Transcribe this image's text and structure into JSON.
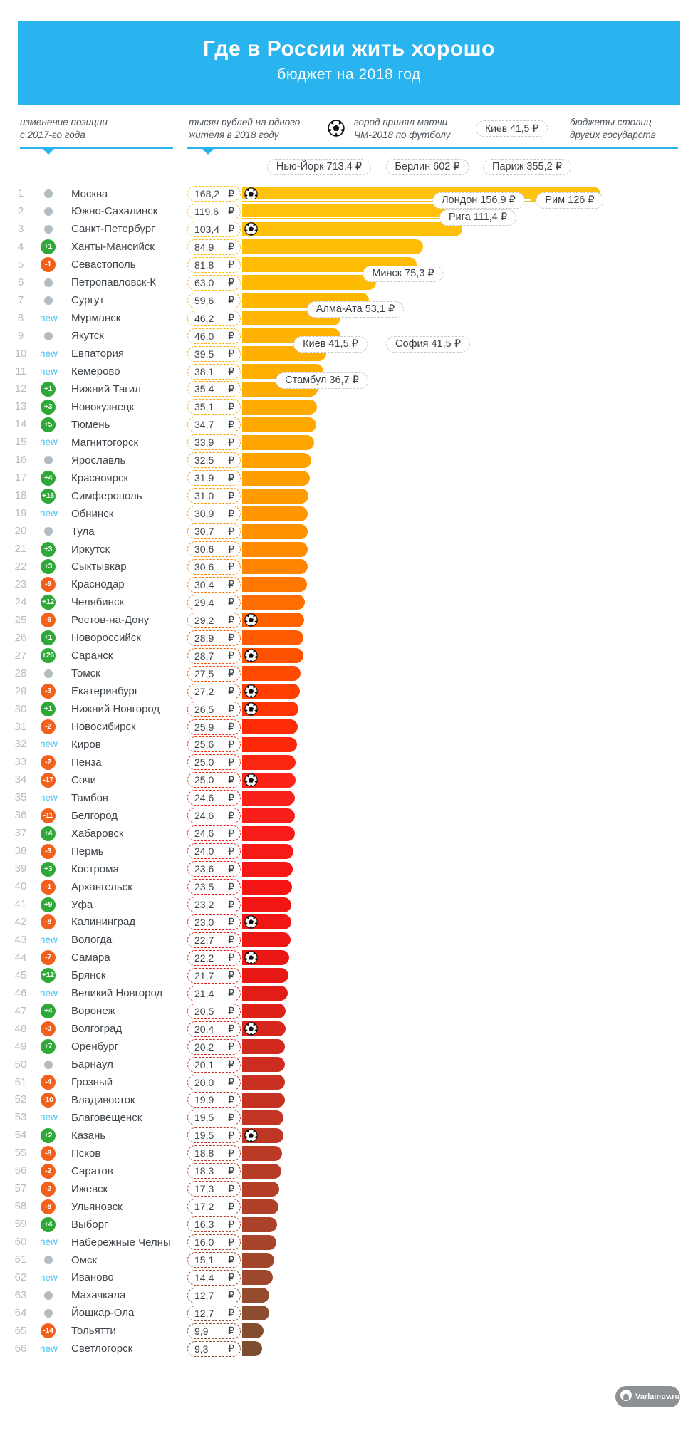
{
  "header": {
    "title": "Где в России жить хорошо",
    "subtitle": "бюджет на 2018 год"
  },
  "legend": {
    "position_change_line1": "изменение позиции",
    "position_change_line2": "с 2017-го года",
    "per_capita_line1": "тысяч рублей на одного",
    "per_capita_line2": "жителя в 2018 году",
    "world_cup_line1": "город принял матчи",
    "world_cup_line2": "ЧМ-2018 по футболу",
    "foreign_line1": "бюджеты столиц",
    "foreign_line2": "других государств",
    "sample_pill": "Киев 41,5 ₽"
  },
  "currency": "₽",
  "colors": {
    "header_blue": "#29B3EF",
    "new_blue": "#45C1F0",
    "up_green": "#2EA836",
    "down_orange": "#F2601C",
    "neutral_gray": "#B2BCC1"
  },
  "footer": {
    "logo_text": "Varlamov.ru"
  },
  "chart_data": {
    "type": "bar",
    "title": "Где в России жить хорошо",
    "subtitle": "бюджет на 2018 год",
    "ylabel": "тысяч рублей на одного жителя в 2018 году",
    "xlim": [
      0,
      168.2
    ],
    "rows": [
      {
        "rank": 1,
        "change": "none",
        "city": "Москва",
        "value": 168.2,
        "value_text": "168,2",
        "world_cup": true
      },
      {
        "rank": 2,
        "change": "none",
        "city": "Южно-Сахалинск",
        "value": 119.6,
        "value_text": "119,6",
        "world_cup": false
      },
      {
        "rank": 3,
        "change": "none",
        "city": "Санкт-Петербург",
        "value": 103.4,
        "value_text": "103,4",
        "world_cup": true
      },
      {
        "rank": 4,
        "change": "+1",
        "city": "Ханты-Мансийск",
        "value": 84.9,
        "value_text": "84,9",
        "world_cup": false
      },
      {
        "rank": 5,
        "change": "-1",
        "city": "Севастополь",
        "value": 81.8,
        "value_text": "81,8",
        "world_cup": false
      },
      {
        "rank": 6,
        "change": "none",
        "city": "Петропавловск-К",
        "value": 63.0,
        "value_text": "63,0",
        "world_cup": false
      },
      {
        "rank": 7,
        "change": "none",
        "city": "Сургут",
        "value": 59.6,
        "value_text": "59,6",
        "world_cup": false
      },
      {
        "rank": 8,
        "change": "new",
        "city": "Мурманск",
        "value": 46.2,
        "value_text": "46,2",
        "world_cup": false
      },
      {
        "rank": 9,
        "change": "none",
        "city": "Якутск",
        "value": 46.0,
        "value_text": "46,0",
        "world_cup": false
      },
      {
        "rank": 10,
        "change": "new",
        "city": "Евпатория",
        "value": 39.5,
        "value_text": "39,5",
        "world_cup": false
      },
      {
        "rank": 11,
        "change": "new",
        "city": "Кемерово",
        "value": 38.1,
        "value_text": "38,1",
        "world_cup": false
      },
      {
        "rank": 12,
        "change": "+1",
        "city": "Нижний Тагил",
        "value": 35.4,
        "value_text": "35,4",
        "world_cup": false
      },
      {
        "rank": 13,
        "change": "+3",
        "city": "Новокузнецк",
        "value": 35.1,
        "value_text": "35,1",
        "world_cup": false
      },
      {
        "rank": 14,
        "change": "+5",
        "city": "Тюмень",
        "value": 34.7,
        "value_text": "34,7",
        "world_cup": false
      },
      {
        "rank": 15,
        "change": "new",
        "city": "Магнитогорск",
        "value": 33.9,
        "value_text": "33,9",
        "world_cup": false
      },
      {
        "rank": 16,
        "change": "none",
        "city": "Ярославль",
        "value": 32.5,
        "value_text": "32,5",
        "world_cup": false
      },
      {
        "rank": 17,
        "change": "+4",
        "city": "Красноярск",
        "value": 31.9,
        "value_text": "31,9",
        "world_cup": false
      },
      {
        "rank": 18,
        "change": "+16",
        "city": "Симферополь",
        "value": 31.0,
        "value_text": "31,0",
        "world_cup": false
      },
      {
        "rank": 19,
        "change": "new",
        "city": "Обнинск",
        "value": 30.9,
        "value_text": "30,9",
        "world_cup": false
      },
      {
        "rank": 20,
        "change": "none",
        "city": "Тула",
        "value": 30.7,
        "value_text": "30,7",
        "world_cup": false
      },
      {
        "rank": 21,
        "change": "+3",
        "city": "Иркутск",
        "value": 30.6,
        "value_text": "30,6",
        "world_cup": false
      },
      {
        "rank": 22,
        "change": "+3",
        "city": "Сыктывкар",
        "value": 30.6,
        "value_text": "30,6",
        "world_cup": false
      },
      {
        "rank": 23,
        "change": "-9",
        "city": "Краснодар",
        "value": 30.4,
        "value_text": "30,4",
        "world_cup": false
      },
      {
        "rank": 24,
        "change": "+12",
        "city": "Челябинск",
        "value": 29.4,
        "value_text": "29,4",
        "world_cup": false
      },
      {
        "rank": 25,
        "change": "-6",
        "city": "Ростов-на-Дону",
        "value": 29.2,
        "value_text": "29,2",
        "world_cup": true
      },
      {
        "rank": 26,
        "change": "+1",
        "city": "Новороссийск",
        "value": 28.9,
        "value_text": "28,9",
        "world_cup": false
      },
      {
        "rank": 27,
        "change": "+26",
        "city": "Саранск",
        "value": 28.7,
        "value_text": "28,7",
        "world_cup": true
      },
      {
        "rank": 28,
        "change": "none",
        "city": "Томск",
        "value": 27.5,
        "value_text": "27,5",
        "world_cup": false
      },
      {
        "rank": 29,
        "change": "-3",
        "city": "Екатеринбург",
        "value": 27.2,
        "value_text": "27,2",
        "world_cup": true
      },
      {
        "rank": 30,
        "change": "+1",
        "city": "Нижний Новгород",
        "value": 26.5,
        "value_text": "26,5",
        "world_cup": true
      },
      {
        "rank": 31,
        "change": "-2",
        "city": "Новосибирск",
        "value": 25.9,
        "value_text": "25,9",
        "world_cup": false
      },
      {
        "rank": 32,
        "change": "new",
        "city": "Киров",
        "value": 25.6,
        "value_text": "25,6",
        "world_cup": false
      },
      {
        "rank": 33,
        "change": "-2",
        "city": "Пенза",
        "value": 25.0,
        "value_text": "25,0",
        "world_cup": false
      },
      {
        "rank": 34,
        "change": "-17",
        "city": "Сочи",
        "value": 25.0,
        "value_text": "25,0",
        "world_cup": true
      },
      {
        "rank": 35,
        "change": "new",
        "city": "Тамбов",
        "value": 24.6,
        "value_text": "24,6",
        "world_cup": false
      },
      {
        "rank": 36,
        "change": "-11",
        "city": "Белгород",
        "value": 24.6,
        "value_text": "24,6",
        "world_cup": false
      },
      {
        "rank": 37,
        "change": "+4",
        "city": "Хабаровск",
        "value": 24.6,
        "value_text": "24,6",
        "world_cup": false
      },
      {
        "rank": 38,
        "change": "-3",
        "city": "Пермь",
        "value": 24.0,
        "value_text": "24,0",
        "world_cup": false
      },
      {
        "rank": 39,
        "change": "+3",
        "city": "Кострома",
        "value": 23.6,
        "value_text": "23,6",
        "world_cup": false
      },
      {
        "rank": 40,
        "change": "-1",
        "city": "Архангельск",
        "value": 23.5,
        "value_text": "23,5",
        "world_cup": false
      },
      {
        "rank": 41,
        "change": "+9",
        "city": "Уфа",
        "value": 23.2,
        "value_text": "23,2",
        "world_cup": false
      },
      {
        "rank": 42,
        "change": "-8",
        "city": "Калининград",
        "value": 23.0,
        "value_text": "23,0",
        "world_cup": true
      },
      {
        "rank": 43,
        "change": "new",
        "city": "Вологда",
        "value": 22.7,
        "value_text": "22,7",
        "world_cup": false
      },
      {
        "rank": 44,
        "change": "-7",
        "city": "Самара",
        "value": 22.2,
        "value_text": "22,2",
        "world_cup": true
      },
      {
        "rank": 45,
        "change": "+12",
        "city": "Брянск",
        "value": 21.7,
        "value_text": "21,7",
        "world_cup": false
      },
      {
        "rank": 46,
        "change": "new",
        "city": "Великий Новгород",
        "value": 21.4,
        "value_text": "21,4",
        "world_cup": false
      },
      {
        "rank": 47,
        "change": "+4",
        "city": "Воронеж",
        "value": 20.5,
        "value_text": "20,5",
        "world_cup": false
      },
      {
        "rank": 48,
        "change": "-3",
        "city": "Волгоград",
        "value": 20.4,
        "value_text": "20,4",
        "world_cup": true
      },
      {
        "rank": 49,
        "change": "+7",
        "city": "Оренбург",
        "value": 20.2,
        "value_text": "20,2",
        "world_cup": false
      },
      {
        "rank": 50,
        "change": "none",
        "city": "Барнаул",
        "value": 20.1,
        "value_text": "20,1",
        "world_cup": false
      },
      {
        "rank": 51,
        "change": "-4",
        "city": "Грозный",
        "value": 20.0,
        "value_text": "20,0",
        "world_cup": false
      },
      {
        "rank": 52,
        "change": "-10",
        "city": "Владивосток",
        "value": 19.9,
        "value_text": "19,9",
        "world_cup": false
      },
      {
        "rank": 53,
        "change": "new",
        "city": "Благовещенск",
        "value": 19.5,
        "value_text": "19,5",
        "world_cup": false
      },
      {
        "rank": 54,
        "change": "+2",
        "city": "Казань",
        "value": 19.5,
        "value_text": "19,5",
        "world_cup": true
      },
      {
        "rank": 55,
        "change": "-8",
        "city": "Псков",
        "value": 18.8,
        "value_text": "18,8",
        "world_cup": false
      },
      {
        "rank": 56,
        "change": "-2",
        "city": "Саратов",
        "value": 18.3,
        "value_text": "18,3",
        "world_cup": false
      },
      {
        "rank": 57,
        "change": "-2",
        "city": "Ижевск",
        "value": 17.3,
        "value_text": "17,3",
        "world_cup": false
      },
      {
        "rank": 58,
        "change": "-8",
        "city": "Ульяновск",
        "value": 17.2,
        "value_text": "17,2",
        "world_cup": false
      },
      {
        "rank": 59,
        "change": "+4",
        "city": "Выборг",
        "value": 16.3,
        "value_text": "16,3",
        "world_cup": false
      },
      {
        "rank": 60,
        "change": "new",
        "city": "Набережные Челны",
        "value": 16.0,
        "value_text": "16,0",
        "world_cup": false
      },
      {
        "rank": 61,
        "change": "none",
        "city": "Омск",
        "value": 15.1,
        "value_text": "15,1",
        "world_cup": false
      },
      {
        "rank": 62,
        "change": "new",
        "city": "Иваново",
        "value": 14.4,
        "value_text": "14,4",
        "world_cup": false
      },
      {
        "rank": 63,
        "change": "none",
        "city": "Махачкала",
        "value": 12.7,
        "value_text": "12,7",
        "world_cup": false
      },
      {
        "rank": 64,
        "change": "none",
        "city": "Йошкар-Ола",
        "value": 12.7,
        "value_text": "12,7",
        "world_cup": false
      },
      {
        "rank": 65,
        "change": "-14",
        "city": "Тольятти",
        "value": 9.9,
        "value_text": "9,9",
        "world_cup": false
      },
      {
        "rank": 66,
        "change": "new",
        "city": "Светлогорск",
        "value": 9.3,
        "value_text": "9,3",
        "world_cup": false
      }
    ],
    "foreign_capitals": [
      {
        "id": "new_york",
        "name": "Нью-Йорк",
        "value": 713.4,
        "label": "Нью-Йорк 713,4 ₽"
      },
      {
        "id": "berlin",
        "name": "Берлин",
        "value": 602,
        "label": "Берлин 602 ₽"
      },
      {
        "id": "paris",
        "name": "Париж",
        "value": 355.2,
        "label": "Париж 355,2 ₽"
      },
      {
        "id": "london",
        "name": "Лондон",
        "value": 156.9,
        "label": "Лондон 156,9 ₽"
      },
      {
        "id": "rome",
        "name": "Рим",
        "value": 126,
        "label": "Рим 126 ₽"
      },
      {
        "id": "riga",
        "name": "Рига",
        "value": 111.4,
        "label": "Рига  111,4 ₽"
      },
      {
        "id": "minsk",
        "name": "Минск",
        "value": 75.3,
        "label": "Минск 75,3 ₽"
      },
      {
        "id": "almaty",
        "name": "Алма-Ата",
        "value": 53.1,
        "label": "Алма-Ата 53,1 ₽"
      },
      {
        "id": "kiev",
        "name": "Киев",
        "value": 41.5,
        "label": "Киев 41,5 ₽"
      },
      {
        "id": "sofia",
        "name": "София",
        "value": 41.5,
        "label": "София 41,5 ₽"
      },
      {
        "id": "istanbul",
        "name": "Стамбул",
        "value": 36.7,
        "label": "Стамбул 36,7 ₽"
      }
    ]
  }
}
